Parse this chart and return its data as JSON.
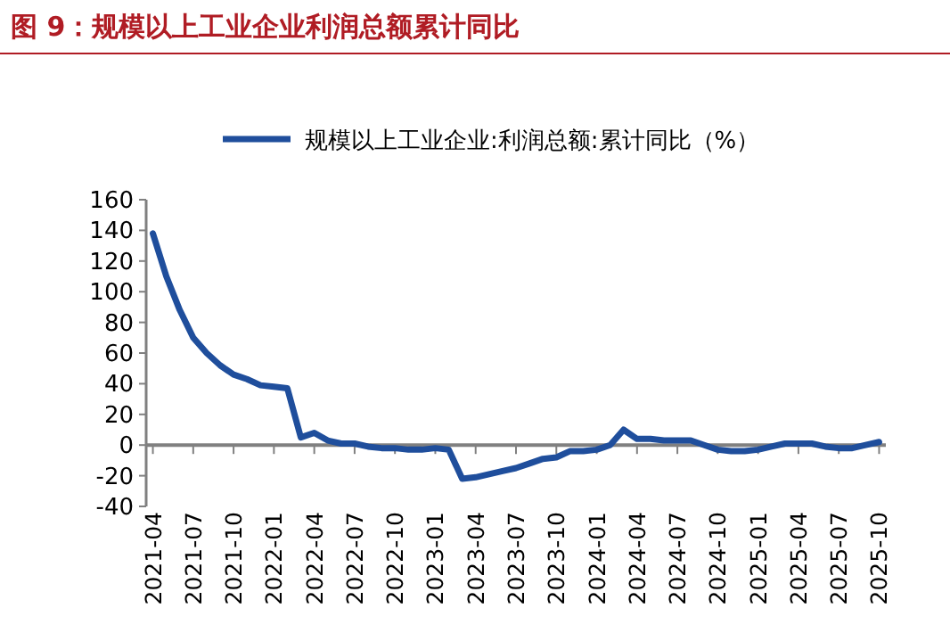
{
  "chart_data": {
    "type": "line",
    "title": "图 9：规模以上工业企业利润总额累计同比",
    "categories": [
      "2021-04",
      null,
      null,
      "2021-07",
      null,
      null,
      "2021-10",
      null,
      null,
      "2022-01",
      null,
      null,
      "2022-04",
      null,
      null,
      "2022-07",
      null,
      null,
      "2022-10",
      null,
      null,
      "2023-01",
      null,
      null,
      "2023-04",
      null,
      null,
      "2023-07",
      null,
      null,
      "2023-10",
      null,
      null,
      "2024-01",
      null,
      null,
      "2024-04",
      null,
      null,
      "2024-07",
      null,
      null,
      "2024-10",
      null,
      null,
      "2025-01",
      null,
      null,
      "2025-04",
      null,
      null,
      "2025-07",
      null,
      null,
      "2025-10"
    ],
    "series": [
      {
        "name": "规模以上工业企业:利润总额:累计同比（%）",
        "color": "#1f4e9c",
        "values": [
          138,
          110,
          88,
          70,
          60,
          52,
          46,
          43,
          39,
          38,
          37,
          5,
          8,
          3,
          1,
          1,
          -1,
          -2,
          -2,
          -3,
          -3,
          -2,
          -3,
          -22,
          -21,
          -19,
          -17,
          -15,
          -12,
          -9,
          -8,
          -4,
          -4,
          -3,
          0,
          10,
          4,
          4,
          3,
          3,
          3,
          0,
          -3,
          -4,
          -4,
          -3,
          -1,
          1,
          1,
          1,
          -1,
          -2,
          -2,
          0,
          2
        ]
      }
    ],
    "ylim": [
      -40,
      160
    ],
    "yticks": [
      -40,
      -20,
      0,
      20,
      40,
      60,
      80,
      100,
      120,
      140,
      160
    ],
    "legend": "top",
    "line_style": "solid",
    "marker": "none"
  }
}
